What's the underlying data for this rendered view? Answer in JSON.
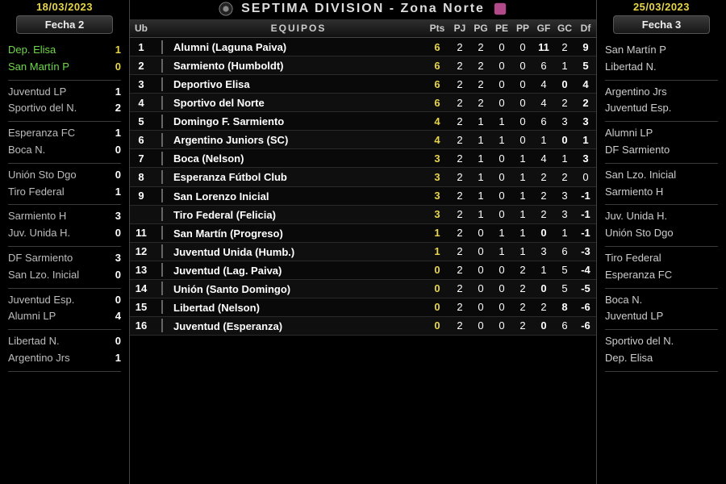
{
  "title": "SEPTIMA DIVISION - Zona Norte",
  "left": {
    "date": "18/03/2023",
    "round": "Fecha 2",
    "fixtures": [
      {
        "h": {
          "n": "Dep. Elisa",
          "s": "1",
          "c": "green"
        },
        "a": {
          "n": "San Martín P",
          "s": "0",
          "c": "green"
        }
      },
      {
        "h": {
          "n": "Juventud LP",
          "s": "1",
          "c": "grey"
        },
        "a": {
          "n": "Sportivo del N.",
          "s": "2",
          "c": "grey"
        }
      },
      {
        "h": {
          "n": "Esperanza FC",
          "s": "1",
          "c": "grey"
        },
        "a": {
          "n": "Boca N.",
          "s": "0",
          "c": "grey"
        }
      },
      {
        "h": {
          "n": "Unión Sto Dgo",
          "s": "0",
          "c": "grey"
        },
        "a": {
          "n": "Tiro Federal",
          "s": "1",
          "c": "grey"
        }
      },
      {
        "h": {
          "n": "Sarmiento H",
          "s": "3",
          "c": "grey"
        },
        "a": {
          "n": "Juv. Unida H.",
          "s": "0",
          "c": "grey"
        }
      },
      {
        "h": {
          "n": "DF Sarmiento",
          "s": "3",
          "c": "grey"
        },
        "a": {
          "n": "San Lzo. Inicial",
          "s": "0",
          "c": "grey"
        }
      },
      {
        "h": {
          "n": "Juventud Esp.",
          "s": "0",
          "c": "grey"
        },
        "a": {
          "n": "Alumni LP",
          "s": "4",
          "c": "grey"
        }
      },
      {
        "h": {
          "n": "Libertad N.",
          "s": "0",
          "c": "grey"
        },
        "a": {
          "n": "Argentino Jrs",
          "s": "1",
          "c": "grey"
        }
      }
    ]
  },
  "right": {
    "date": "25/03/2023",
    "round": "Fecha 3",
    "fixtures": [
      {
        "h": {
          "n": "San Martín P"
        },
        "a": {
          "n": "Libertad N."
        }
      },
      {
        "h": {
          "n": "Argentino Jrs"
        },
        "a": {
          "n": "Juventud Esp."
        }
      },
      {
        "h": {
          "n": "Alumni LP"
        },
        "a": {
          "n": "DF Sarmiento"
        }
      },
      {
        "h": {
          "n": "San Lzo. Inicial"
        },
        "a": {
          "n": "Sarmiento H"
        }
      },
      {
        "h": {
          "n": "Juv. Unida H."
        },
        "a": {
          "n": "Unión Sto Dgo"
        }
      },
      {
        "h": {
          "n": "Tiro Federal"
        },
        "a": {
          "n": "Esperanza FC"
        }
      },
      {
        "h": {
          "n": "Boca N."
        },
        "a": {
          "n": "Juventud LP"
        }
      },
      {
        "h": {
          "n": "Sportivo del N."
        },
        "a": {
          "n": "Dep. Elisa"
        }
      }
    ]
  },
  "standings": {
    "headers": {
      "ub": "Ub",
      "team": "EQUIPOS",
      "pts": "Pts",
      "pj": "PJ",
      "pg": "PG",
      "pe": "PE",
      "pp": "PP",
      "gf": "GF",
      "gc": "GC",
      "df": "Df"
    },
    "rows": [
      {
        "ub": "1",
        "team": "Alumni (Laguna Paiva)",
        "crest": "#2e7d32",
        "pts": "6",
        "ptc": "ywl",
        "pj": "2",
        "pg": "2",
        "pe": "0",
        "pp": "0",
        "gf": "11",
        "gfc": "pos",
        "gc": "2",
        "df": "9",
        "dfc": "pos"
      },
      {
        "ub": "2",
        "team": "Sarmiento (Humboldt)",
        "crest": "#f5c518",
        "pts": "6",
        "ptc": "ywl",
        "pj": "2",
        "pg": "2",
        "pe": "0",
        "pp": "0",
        "gf": "6",
        "gc": "1",
        "df": "5",
        "dfc": "pos"
      },
      {
        "ub": "3",
        "team": "Deportivo Elisa",
        "crest": "#7ecdeb",
        "pts": "6",
        "ptc": "ywl",
        "pj": "2",
        "pg": "2",
        "pe": "0",
        "pp": "0",
        "gf": "4",
        "gc": "0",
        "gcc": "pos",
        "df": "4",
        "dfc": "pos"
      },
      {
        "ub": "4",
        "team": "Sportivo del Norte",
        "crest": "#111",
        "pts": "6",
        "ptc": "ywl",
        "pj": "2",
        "pg": "2",
        "pe": "0",
        "pp": "0",
        "gf": "4",
        "gc": "2",
        "df": "2",
        "dfc": "pos"
      },
      {
        "ub": "5",
        "team": "Domingo F. Sarmiento",
        "crest": "#1d3fbf",
        "pts": "4",
        "ptc": "ywl",
        "pj": "2",
        "pg": "1",
        "pe": "1",
        "pp": "0",
        "gf": "6",
        "gc": "3",
        "df": "3",
        "dfc": "pos"
      },
      {
        "ub": "6",
        "team": "Argentino Juniors (SC)",
        "crest": "#6fb7d6",
        "pts": "4",
        "ptc": "ywl",
        "pj": "2",
        "pg": "1",
        "pe": "1",
        "pp": "0",
        "gf": "1",
        "gc": "0",
        "gcc": "pos",
        "df": "1",
        "dfc": "pos"
      },
      {
        "ub": "7",
        "team": "Boca (Nelson)",
        "crest": "#0a2a6b",
        "pts": "3",
        "ptc": "ywl",
        "pj": "2",
        "pg": "1",
        "pe": "0",
        "pp": "1",
        "gf": "4",
        "gc": "1",
        "df": "3",
        "dfc": "pos"
      },
      {
        "ub": "8",
        "team": "Esperanza Fútbol Club",
        "crest": "#c81e1e",
        "pts": "3",
        "ptc": "ywl",
        "pj": "2",
        "pg": "1",
        "pe": "0",
        "pp": "1",
        "gf": "2",
        "gc": "2",
        "df": "0",
        "dfc": "zer"
      },
      {
        "ub": "9",
        "team": "San Lorenzo Inicial",
        "crest": "#5aa9d6",
        "pts": "3",
        "ptc": "ywl",
        "pj": "2",
        "pg": "1",
        "pe": "0",
        "pp": "1",
        "gf": "2",
        "gc": "3",
        "df": "-1",
        "dfc": "neg"
      },
      {
        "ub": "",
        "team": "Tiro Federal (Felicia)",
        "crest": "#ffffff",
        "pts": "3",
        "ptc": "ywl",
        "pj": "2",
        "pg": "1",
        "pe": "0",
        "pp": "1",
        "gf": "2",
        "gc": "3",
        "df": "-1",
        "dfc": "neg"
      },
      {
        "ub": "11",
        "team": "San Martín (Progreso)",
        "crest": "#8a1b1b",
        "pts": "1",
        "ptc": "ywl",
        "pj": "2",
        "pg": "0",
        "pe": "1",
        "pp": "1",
        "gf": "0",
        "gfc": "ywl",
        "gc": "1",
        "df": "-1",
        "dfc": "neg"
      },
      {
        "ub": "12",
        "team": "Juventud Unida (Humb.)",
        "crest": "#c33",
        "pts": "1",
        "ptc": "ywl",
        "pj": "2",
        "pg": "0",
        "pe": "1",
        "pp": "1",
        "gf": "3",
        "gc": "6",
        "df": "-3",
        "dfc": "neg"
      },
      {
        "ub": "13",
        "team": "Juventud (Lag. Paiva)",
        "crest": "#c33",
        "pts": "0",
        "ptc": "ywl",
        "pj": "2",
        "pg": "0",
        "pe": "0",
        "pp": "2",
        "gf": "1",
        "gc": "5",
        "df": "-4",
        "dfc": "neg"
      },
      {
        "ub": "14",
        "team": "Unión (Santo Domingo)",
        "crest": "#111",
        "pts": "0",
        "ptc": "ywl",
        "pj": "2",
        "pg": "0",
        "pe": "0",
        "pp": "2",
        "gf": "0",
        "gfc": "ywl",
        "gc": "5",
        "df": "-5",
        "dfc": "neg"
      },
      {
        "ub": "15",
        "team": "Libertad (Nelson)",
        "crest": "#b02020",
        "pts": "0",
        "ptc": "ywl",
        "pj": "2",
        "pg": "0",
        "pe": "0",
        "pp": "2",
        "gf": "2",
        "gc": "8",
        "gcc": "ywl",
        "df": "-6",
        "dfc": "neg"
      },
      {
        "ub": "16",
        "team": "Juventud (Esperanza)",
        "crest": "#7a1212",
        "pts": "0",
        "ptc": "ywl",
        "pj": "2",
        "pg": "0",
        "pe": "0",
        "pp": "2",
        "gf": "0",
        "gfc": "ywl",
        "gc": "6",
        "df": "-6",
        "dfc": "neg"
      }
    ]
  }
}
